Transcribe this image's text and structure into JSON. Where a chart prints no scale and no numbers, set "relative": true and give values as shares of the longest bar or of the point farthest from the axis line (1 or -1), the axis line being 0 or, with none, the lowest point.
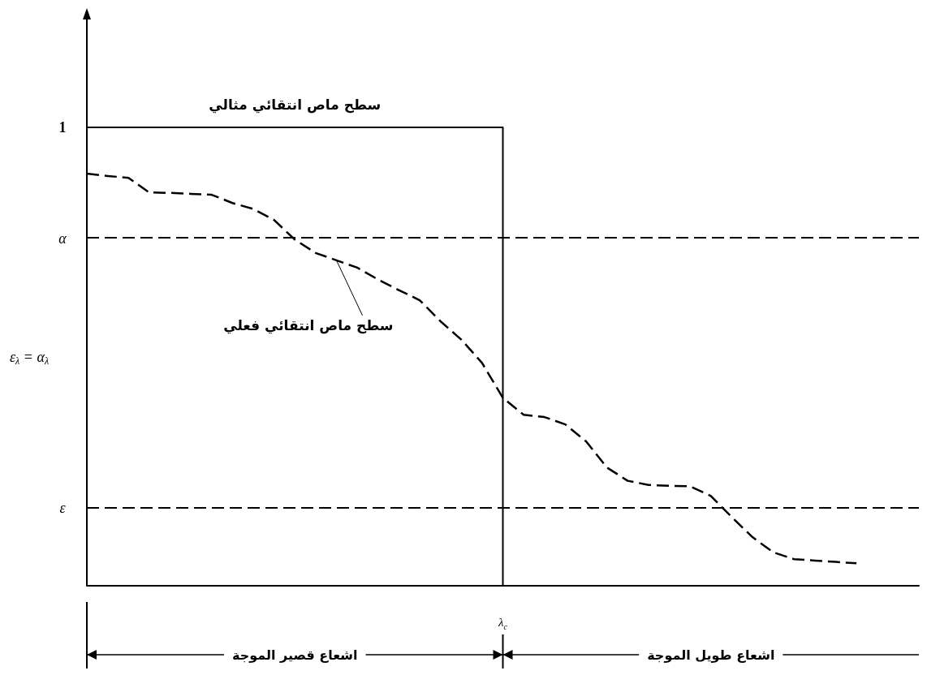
{
  "chart_data": {
    "type": "line",
    "relative": true,
    "ylabel": "ε$_{λ}$ = α$_{λ}$",
    "grid": false,
    "legend": false,
    "marker": "none",
    "categories": [
      null,
      null,
      null,
      null,
      null,
      null,
      null,
      null,
      null,
      null,
      null,
      null,
      null,
      null,
      null,
      null,
      null,
      null,
      null,
      null,
      null,
      null,
      null,
      null,
      null,
      null,
      null,
      null,
      null,
      null,
      null,
      null,
      null,
      null,
      null,
      null,
      null,
      null,
      null,
      null,
      null
    ],
    "series": [
      {
        "name": "سطح ماص انتقائي مثالي",
        "type": "step",
        "color": "#000000",
        "line_style": "solid",
        "values": [
          1,
          1,
          1,
          1,
          1,
          1,
          1,
          1,
          1,
          1,
          1,
          1,
          1,
          1,
          1,
          1,
          1,
          1,
          1,
          1,
          0,
          0,
          0,
          0,
          0,
          0,
          0,
          0,
          0,
          0,
          0,
          0,
          0,
          0,
          0,
          0,
          0,
          0,
          0,
          0,
          0
        ]
      },
      {
        "name": "سطح ماص انتقائي فعلي",
        "color": "#000000",
        "line_style": "dashed",
        "values": [
          0.899,
          0.894,
          0.89,
          0.858,
          0.857,
          0.855,
          0.853,
          0.835,
          0.822,
          0.798,
          0.755,
          0.726,
          0.71,
          0.694,
          0.668,
          0.645,
          0.623,
          0.577,
          0.537,
          0.486,
          0.41,
          0.373,
          0.368,
          0.352,
          0.315,
          0.258,
          0.229,
          0.22,
          0.218,
          0.217,
          0.196,
          0.15,
          0.106,
          0.073,
          0.058,
          0.055,
          0.052,
          0.049,
          null,
          null,
          null
        ]
      }
    ],
    "ref_lines": [
      {
        "axis": "y",
        "value": 0.758,
        "label": "α",
        "line_style": "dashed",
        "color": "#000000"
      },
      {
        "axis": "y",
        "value": 0.17,
        "label": "ε",
        "line_style": "dashed",
        "color": "#000000"
      }
    ],
    "annotations": [
      "1",
      "λ$_{c}$",
      "اشعاع قصير الموجة",
      "اشعاع طويل الموجة"
    ]
  }
}
